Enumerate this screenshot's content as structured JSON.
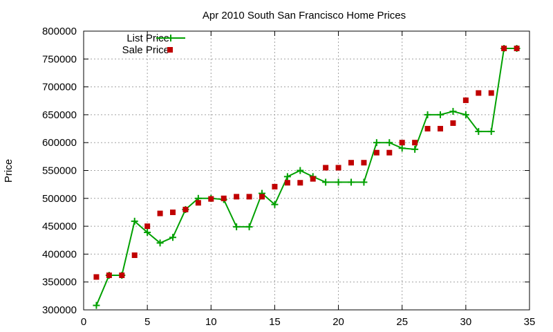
{
  "chart_data": {
    "type": "line",
    "title": "Apr 2010 South San Francisco Home Prices",
    "xlabel": "",
    "ylabel": "Price",
    "xlim": [
      0,
      35
    ],
    "ylim": [
      300000,
      800000
    ],
    "xticks": [
      0,
      5,
      10,
      15,
      20,
      25,
      30,
      35
    ],
    "yticks": [
      300000,
      350000,
      400000,
      450000,
      500000,
      550000,
      600000,
      650000,
      700000,
      750000,
      800000
    ],
    "grid": true,
    "legend_position": "top-left",
    "series": [
      {
        "name": "List Price",
        "style": "line-with-plus-markers",
        "color": "#00a000",
        "points": [
          [
            1,
            308000
          ],
          [
            2,
            362000
          ],
          [
            3,
            362000
          ],
          [
            4,
            459000
          ],
          [
            5,
            439000
          ],
          [
            6,
            420000
          ],
          [
            7,
            430000
          ],
          [
            8,
            480000
          ],
          [
            9,
            500000
          ],
          [
            10,
            500000
          ],
          [
            11,
            498000
          ],
          [
            12,
            449000
          ],
          [
            13,
            449000
          ],
          [
            14,
            509000
          ],
          [
            15,
            489000
          ],
          [
            16,
            539000
          ],
          [
            17,
            550000
          ],
          [
            18,
            539000
          ],
          [
            19,
            529000
          ],
          [
            20,
            529000
          ],
          [
            21,
            529000
          ],
          [
            22,
            529000
          ],
          [
            23,
            600000
          ],
          [
            24,
            600000
          ],
          [
            25,
            590000
          ],
          [
            26,
            588000
          ],
          [
            27,
            650000
          ],
          [
            28,
            650000
          ],
          [
            29,
            656000
          ],
          [
            30,
            650000
          ],
          [
            31,
            620000
          ],
          [
            32,
            620000
          ],
          [
            33,
            769000
          ],
          [
            34,
            769000
          ]
        ]
      },
      {
        "name": "Sale Price",
        "style": "square-markers",
        "color": "#c00000",
        "points": [
          [
            1,
            359000
          ],
          [
            2,
            362000
          ],
          [
            3,
            362000
          ],
          [
            4,
            398000
          ],
          [
            5,
            450000
          ],
          [
            6,
            473000
          ],
          [
            7,
            475000
          ],
          [
            8,
            480000
          ],
          [
            9,
            492000
          ],
          [
            10,
            499000
          ],
          [
            11,
            500000
          ],
          [
            12,
            503000
          ],
          [
            13,
            503000
          ],
          [
            14,
            503000
          ],
          [
            15,
            521000
          ],
          [
            16,
            528000
          ],
          [
            17,
            528000
          ],
          [
            18,
            535000
          ],
          [
            19,
            555000
          ],
          [
            20,
            555000
          ],
          [
            21,
            564000
          ],
          [
            22,
            564000
          ],
          [
            23,
            582000
          ],
          [
            24,
            582000
          ],
          [
            25,
            600000
          ],
          [
            26,
            600000
          ],
          [
            27,
            625000
          ],
          [
            28,
            625000
          ],
          [
            29,
            635000
          ],
          [
            30,
            676000
          ],
          [
            31,
            689000
          ],
          [
            32,
            689000
          ],
          [
            33,
            769000
          ],
          [
            34,
            769000
          ]
        ]
      }
    ]
  }
}
